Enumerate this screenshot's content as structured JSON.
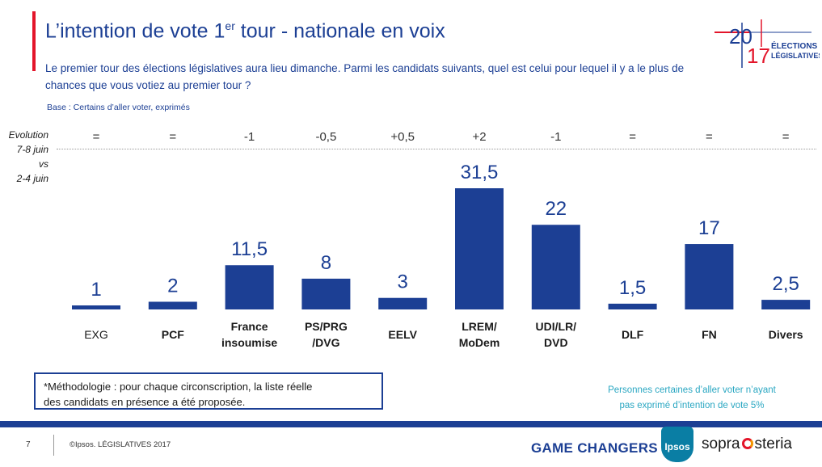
{
  "header": {
    "title_main": "L’intention de vote 1",
    "title_sup": "er",
    "title_rest": " tour - nationale en voix",
    "question": "Le premier tour des élections législatives aura lieu dimanche. Parmi les candidats suivants, quel est celui pour lequel il y a le plus de chances que vous votiez au premier tour ?",
    "base": "Base : Certains d’aller voter, exprimés"
  },
  "logo": {
    "year_top": "20",
    "year_bottom": "17",
    "line1": "ÉLECTIONS",
    "line2": "LÉGISLATIVES"
  },
  "evolution": {
    "label_lines": [
      "Evolution",
      "7-8 juin",
      "vs",
      "2-4 juin"
    ],
    "values": [
      "=",
      "=",
      "-1",
      "-0,5",
      "+0,5",
      "+2",
      "-1",
      "=",
      "=",
      "="
    ]
  },
  "chart_data": {
    "type": "bar",
    "categories": [
      [
        "EXG"
      ],
      [
        "PCF"
      ],
      [
        "France",
        "insoumise"
      ],
      [
        "PS/PRG",
        "/DVG"
      ],
      [
        "EELV"
      ],
      [
        "LREM/",
        "MoDem"
      ],
      [
        "UDI/LR/",
        "DVD"
      ],
      [
        "DLF"
      ],
      [
        "FN"
      ],
      [
        "Divers"
      ]
    ],
    "values": [
      1,
      2,
      11.5,
      8,
      3,
      31.5,
      22,
      1.5,
      17,
      2.5
    ],
    "value_labels": [
      "1",
      "2",
      "11,5",
      "8",
      "3",
      "31,5",
      "22",
      "1,5",
      "17",
      "2,5"
    ],
    "bold_categories": [
      false,
      true,
      true,
      true,
      true,
      true,
      true,
      true,
      true,
      true
    ],
    "bar_color": "#1c3f94",
    "ylim": [
      0,
      31.5
    ],
    "grid": false,
    "legend": "none"
  },
  "notes": {
    "methodology_line1": "*Méthodologie : pour chaque circonscription, la liste réelle",
    "methodology_line2": "des candidats en présence a été proposée.",
    "non_expressed_line1": "Personnes certaines d’aller voter n’ayant",
    "non_expressed_line2": "pas exprimé d’intention de vote 5%"
  },
  "footer": {
    "page_number": "7",
    "copyright": "©Ipsos.  LÉGISLATIVES 2017",
    "game_changers": "GAME CHANGERS",
    "ipsos": "Ipsos",
    "sopra_left": "sopra",
    "sopra_right": "steria"
  },
  "colors": {
    "primary_blue": "#1c3f94",
    "accent_red": "#e3152a",
    "teal_note": "#2aa7c2"
  }
}
